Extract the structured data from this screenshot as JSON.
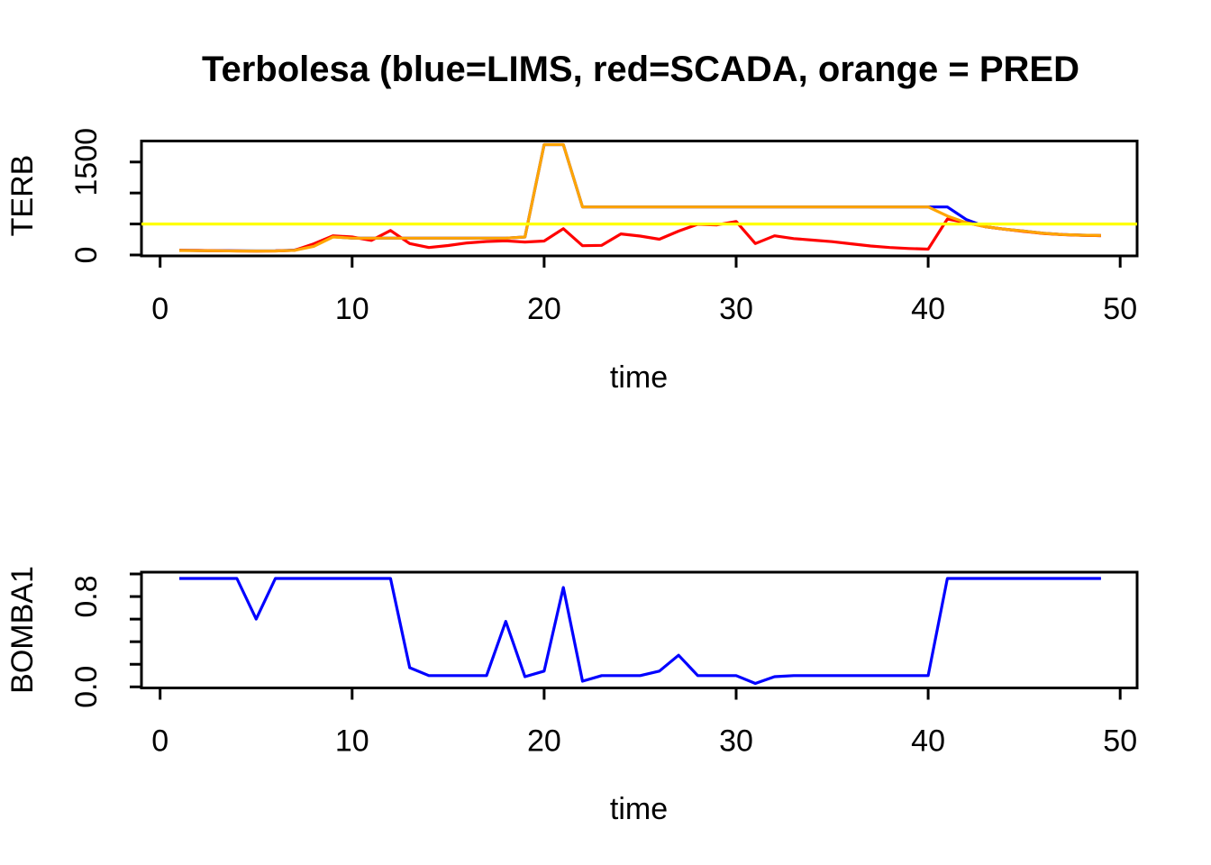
{
  "title": "Terbolesa (blue=LIMS, red=SCADA, orange = PRED",
  "colors": {
    "lims": "#0000FF",
    "scada": "#FF0000",
    "pred": "#FFA500",
    "threshold": "#FFFF00",
    "axis": "#000000",
    "background": "#FFFFFF"
  },
  "chart_data": [
    {
      "type": "line",
      "title": "Terbolesa (blue=LIMS, red=SCADA, orange = PRED",
      "xlabel": "time",
      "ylabel": "TERB",
      "xlim": [
        -1,
        51
      ],
      "ylim": [
        0,
        1840
      ],
      "grid": false,
      "legend_position": "in-title",
      "x_ticks": [
        0,
        10,
        20,
        30,
        40,
        50
      ],
      "y_ticks": [
        {
          "value": 0,
          "label": "0"
        },
        {
          "value": 500,
          "label": null
        },
        {
          "value": 1000,
          "label": null
        },
        {
          "value": 1500,
          "label": "1500"
        }
      ],
      "reference_line": {
        "y": 500,
        "color": "#FFFF00"
      },
      "x": [
        1,
        2,
        3,
        4,
        5,
        6,
        7,
        8,
        9,
        10,
        11,
        12,
        13,
        14,
        15,
        16,
        17,
        18,
        19,
        20,
        21,
        22,
        23,
        24,
        25,
        26,
        27,
        28,
        29,
        30,
        31,
        32,
        33,
        34,
        35,
        36,
        37,
        38,
        39,
        40,
        41,
        42,
        43,
        44,
        45,
        46,
        47,
        48,
        49
      ],
      "series": [
        {
          "name": "LIMS",
          "color": "#0000FF",
          "values": [
            75,
            72,
            70,
            68,
            66,
            68,
            78,
            160,
            295,
            272,
            272,
            272,
            272,
            272,
            272,
            272,
            272,
            272,
            290,
            1780,
            1780,
            775,
            775,
            775,
            775,
            775,
            775,
            775,
            775,
            775,
            775,
            775,
            775,
            775,
            775,
            775,
            775,
            775,
            775,
            775,
            775,
            570,
            455,
            415,
            385,
            350,
            330,
            320,
            312
          ]
        },
        {
          "name": "SCADA",
          "color": "#FF0000",
          "values": [
            75,
            72,
            69,
            66,
            63,
            66,
            75,
            180,
            310,
            290,
            235,
            395,
            185,
            120,
            152,
            195,
            218,
            228,
            210,
            225,
            425,
            150,
            155,
            340,
            305,
            255,
            385,
            495,
            485,
            540,
            185,
            310,
            265,
            240,
            215,
            180,
            145,
            120,
            105,
            95,
            580,
            520,
            455,
            415,
            380,
            348,
            328,
            318,
            312
          ]
        },
        {
          "name": "PRED",
          "color": "#FFA500",
          "values": [
            72,
            70,
            68,
            66,
            64,
            66,
            75,
            140,
            290,
            272,
            272,
            272,
            272,
            272,
            272,
            272,
            272,
            272,
            290,
            1780,
            1780,
            775,
            775,
            775,
            775,
            775,
            775,
            775,
            775,
            775,
            775,
            775,
            775,
            775,
            775,
            775,
            775,
            775,
            775,
            775,
            630,
            520,
            455,
            415,
            385,
            350,
            330,
            320,
            315
          ]
        }
      ]
    },
    {
      "type": "line",
      "title": "",
      "xlabel": "time",
      "ylabel": "BOMBA1",
      "xlim": [
        -1,
        51
      ],
      "ylim": [
        0,
        1.0
      ],
      "grid": false,
      "x_ticks": [
        0,
        10,
        20,
        30,
        40,
        50
      ],
      "y_ticks": [
        {
          "value": 0.0,
          "label": "0.0"
        },
        {
          "value": 0.2,
          "label": null
        },
        {
          "value": 0.4,
          "label": null
        },
        {
          "value": 0.6,
          "label": null
        },
        {
          "value": 0.8,
          "label": "0.8"
        },
        {
          "value": 1.0,
          "label": null
        }
      ],
      "x": [
        1,
        2,
        3,
        4,
        5,
        6,
        7,
        8,
        9,
        10,
        11,
        12,
        13,
        14,
        15,
        16,
        17,
        18,
        19,
        20,
        21,
        22,
        23,
        24,
        25,
        26,
        27,
        28,
        29,
        30,
        31,
        32,
        33,
        34,
        35,
        36,
        37,
        38,
        39,
        40,
        41,
        42,
        43,
        44,
        45,
        46,
        47,
        48,
        49
      ],
      "series": [
        {
          "name": "BOMBA1",
          "color": "#0000FF",
          "values": [
            0.96,
            0.96,
            0.96,
            0.96,
            0.6,
            0.96,
            0.96,
            0.96,
            0.96,
            0.96,
            0.96,
            0.96,
            0.17,
            0.1,
            0.1,
            0.1,
            0.1,
            0.58,
            0.09,
            0.14,
            0.88,
            0.05,
            0.1,
            0.1,
            0.1,
            0.14,
            0.28,
            0.1,
            0.1,
            0.1,
            0.03,
            0.09,
            0.1,
            0.1,
            0.1,
            0.1,
            0.1,
            0.1,
            0.1,
            0.1,
            0.96,
            0.96,
            0.96,
            0.96,
            0.96,
            0.96,
            0.96,
            0.96,
            0.96
          ]
        }
      ]
    }
  ]
}
